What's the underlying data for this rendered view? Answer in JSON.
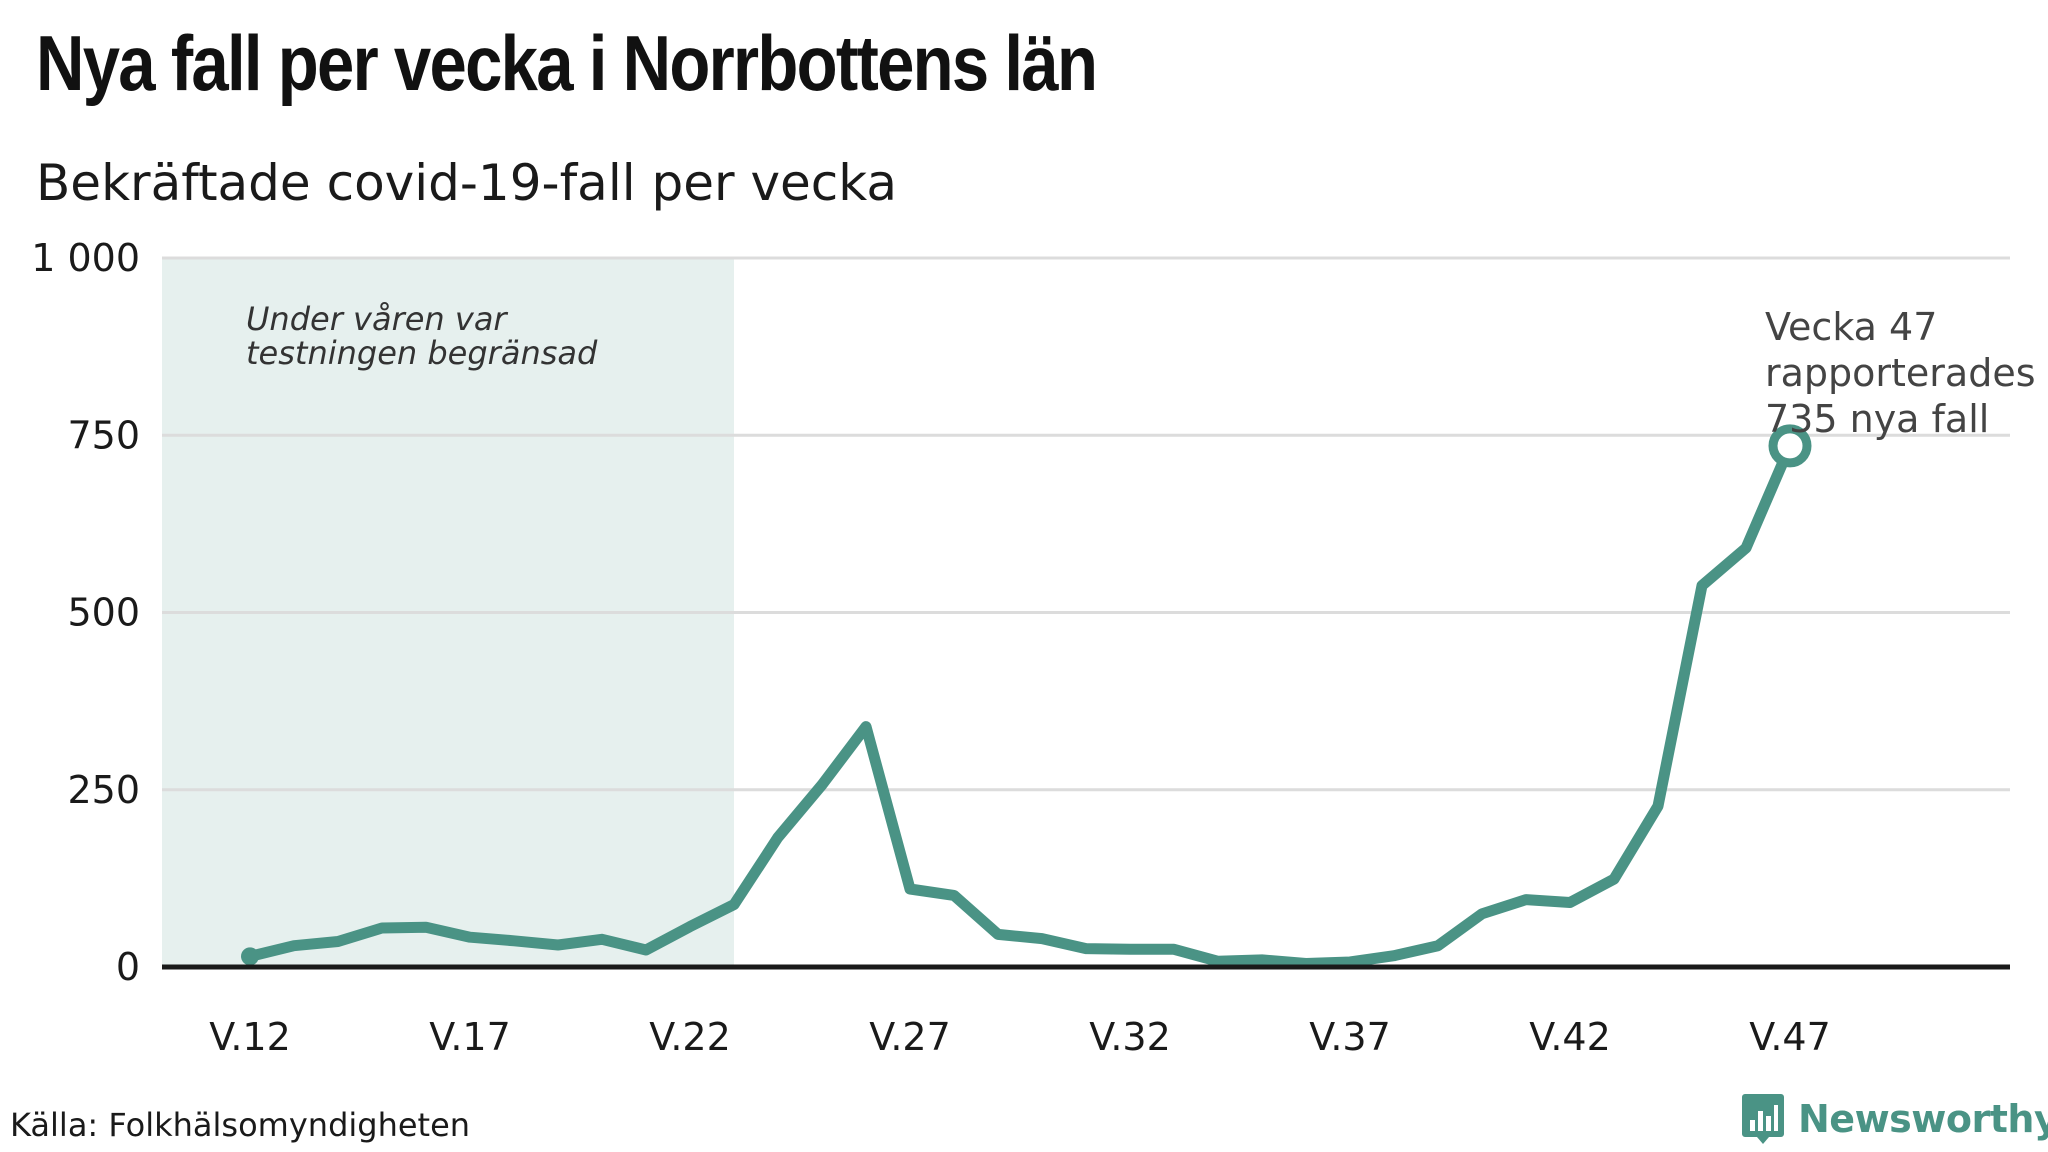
{
  "header": {
    "title": "Nya fall per vecka i Norrbottens län",
    "subtitle": "Bekräftade covid-19-fall per vecka"
  },
  "footer": {
    "source": "Källa: Folkhälsomyndigheten",
    "brand": "Newsworthy",
    "brand_icon": "bar-chart-icon"
  },
  "colors": {
    "line": "#4a9385",
    "shade": "#e6f0ee",
    "grid": "#dcdcdc",
    "baseline": "#1a1a1a",
    "text": "#1a1a1a",
    "brand": "#4a9385"
  },
  "chart_data": {
    "type": "line",
    "x": [
      12,
      13,
      14,
      15,
      16,
      17,
      18,
      19,
      20,
      21,
      22,
      23,
      24,
      25,
      26,
      27,
      28,
      29,
      30,
      31,
      32,
      33,
      34,
      35,
      36,
      37,
      38,
      39,
      40,
      41,
      42,
      43,
      44,
      45,
      46,
      47
    ],
    "series": [
      {
        "name": "",
        "values": [
          15,
          30,
          36,
          55,
          56,
          42,
          37,
          31,
          39,
          24,
          57,
          88,
          183,
          257,
          339,
          110,
          101,
          46,
          40,
          26,
          25,
          25,
          8,
          10,
          5,
          7,
          16,
          30,
          75,
          95,
          91,
          124,
          227,
          538,
          591,
          735
        ]
      }
    ],
    "title": "Nya fall per vecka i Norrbottens län",
    "subtitle": "Bekräftade covid-19-fall per vecka",
    "xlabel": "",
    "ylabel": "",
    "xlim": [
      10,
      52
    ],
    "ylim": [
      0,
      1000
    ],
    "yticks": [
      0,
      250,
      500,
      750,
      1000
    ],
    "ytick_labels": [
      "0",
      "250",
      "500",
      "750",
      "1 000"
    ],
    "xticks": [
      12,
      17,
      22,
      27,
      32,
      37,
      42,
      47
    ],
    "xtick_labels": [
      "V.12",
      "V.17",
      "V.22",
      "V.27",
      "V.32",
      "V.37",
      "V.42",
      "V.47"
    ],
    "grid": true,
    "shaded_region": {
      "x_range": [
        10,
        23
      ],
      "label": [
        "Under våren var",
        "testningen begränsad"
      ]
    },
    "annotation": {
      "x": 47,
      "y": 735,
      "lines": [
        "Vecka 47",
        "rapporterades",
        "735 nya fall"
      ]
    }
  }
}
